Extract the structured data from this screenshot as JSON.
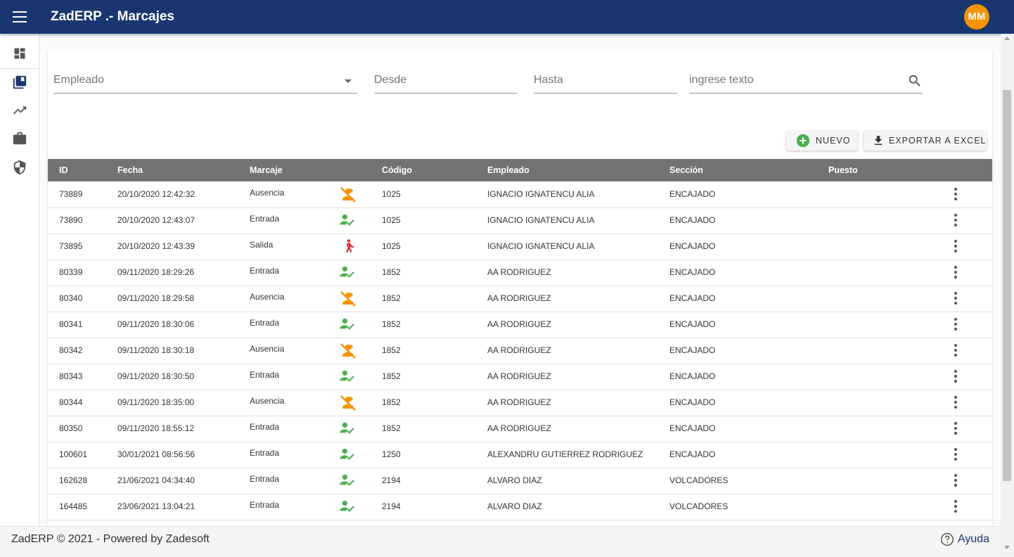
{
  "header": {
    "title": "ZadERP .- Marcajes",
    "avatar": "MM",
    "avatar_color": "#f59300"
  },
  "sidebar": {
    "icons": [
      "dashboard-icon",
      "library-books-icon",
      "trending-up-icon",
      "work-icon",
      "security-icon"
    ]
  },
  "filters": {
    "empleado_placeholder": "Empleado",
    "desde_placeholder": "Desde",
    "hasta_placeholder": "Hasta",
    "search_placeholder": "ingrese texto"
  },
  "buttons": {
    "nuevo": "NUEVO",
    "exportar": "EXPORTAR A EXCEL"
  },
  "table": {
    "headers": {
      "id": "ID",
      "fecha": "Fecha",
      "marcaje": "Marcaje",
      "codigo": "Código",
      "empleado": "Empleado",
      "seccion": "Sección",
      "puesto": "Puesto"
    },
    "rows": [
      {
        "id": "73889",
        "fecha": "20/10/2020 12:42:32",
        "marcaje": "Ausencia",
        "status": "ausencia",
        "codigo": "1025",
        "empleado": "IGNACIO IGNATENCU ALIA",
        "seccion": "ENCAJADO",
        "puesto": ""
      },
      {
        "id": "73890",
        "fecha": "20/10/2020 12:43:07",
        "marcaje": "Entrada",
        "status": "entrada",
        "codigo": "1025",
        "empleado": "IGNACIO IGNATENCU ALIA",
        "seccion": "ENCAJADO",
        "puesto": ""
      },
      {
        "id": "73895",
        "fecha": "20/10/2020 12:43:39",
        "marcaje": "Salida",
        "status": "salida",
        "codigo": "1025",
        "empleado": "IGNACIO IGNATENCU ALIA",
        "seccion": "ENCAJADO",
        "puesto": ""
      },
      {
        "id": "80339",
        "fecha": "09/11/2020 18:29:26",
        "marcaje": "Entrada",
        "status": "entrada",
        "codigo": "1852",
        "empleado": "AA RODRIGUEZ",
        "seccion": "ENCAJADO",
        "puesto": ""
      },
      {
        "id": "80340",
        "fecha": "09/11/2020 18:29:58",
        "marcaje": "Ausencia",
        "status": "ausencia",
        "codigo": "1852",
        "empleado": "AA RODRIGUEZ",
        "seccion": "ENCAJADO",
        "puesto": ""
      },
      {
        "id": "80341",
        "fecha": "09/11/2020 18:30:06",
        "marcaje": "Entrada",
        "status": "entrada",
        "codigo": "1852",
        "empleado": "AA RODRIGUEZ",
        "seccion": "ENCAJADO",
        "puesto": ""
      },
      {
        "id": "80342",
        "fecha": "09/11/2020 18:30:18",
        "marcaje": "Ausencia",
        "status": "ausencia",
        "codigo": "1852",
        "empleado": "AA RODRIGUEZ",
        "seccion": "ENCAJADO",
        "puesto": ""
      },
      {
        "id": "80343",
        "fecha": "09/11/2020 18:30:50",
        "marcaje": "Entrada",
        "status": "entrada",
        "codigo": "1852",
        "empleado": "AA RODRIGUEZ",
        "seccion": "ENCAJADO",
        "puesto": ""
      },
      {
        "id": "80344",
        "fecha": "09/11/2020 18:35:00",
        "marcaje": "Ausencia",
        "status": "ausencia",
        "codigo": "1852",
        "empleado": "AA RODRIGUEZ",
        "seccion": "ENCAJADO",
        "puesto": ""
      },
      {
        "id": "80350",
        "fecha": "09/11/2020 18:55:12",
        "marcaje": "Entrada",
        "status": "entrada",
        "codigo": "1852",
        "empleado": "AA RODRIGUEZ",
        "seccion": "ENCAJADO",
        "puesto": ""
      },
      {
        "id": "100601",
        "fecha": "30/01/2021 08:56:56",
        "marcaje": "Entrada",
        "status": "entrada",
        "codigo": "1250",
        "empleado": "ALEXANDRU GUTIERREZ RODRIGUEZ",
        "seccion": "ENCAJADO",
        "puesto": ""
      },
      {
        "id": "162628",
        "fecha": "21/06/2021 04:34:40",
        "marcaje": "Entrada",
        "status": "entrada",
        "codigo": "2194",
        "empleado": "ALVARO DIAZ",
        "seccion": "VOLCADORES",
        "puesto": ""
      },
      {
        "id": "164485",
        "fecha": "23/06/2021 13:04:21",
        "marcaje": "Entrada",
        "status": "entrada",
        "codigo": "2194",
        "empleado": "ALVARO DIAZ",
        "seccion": "VOLCADORES",
        "puesto": ""
      }
    ]
  },
  "status_colors": {
    "entrada": "#4caf50",
    "ausencia": "#f59300",
    "salida": "#d32f2f"
  },
  "footer": {
    "text": "ZadERP © 2021 - Powered by Zadesoft",
    "help": "Ayuda"
  }
}
